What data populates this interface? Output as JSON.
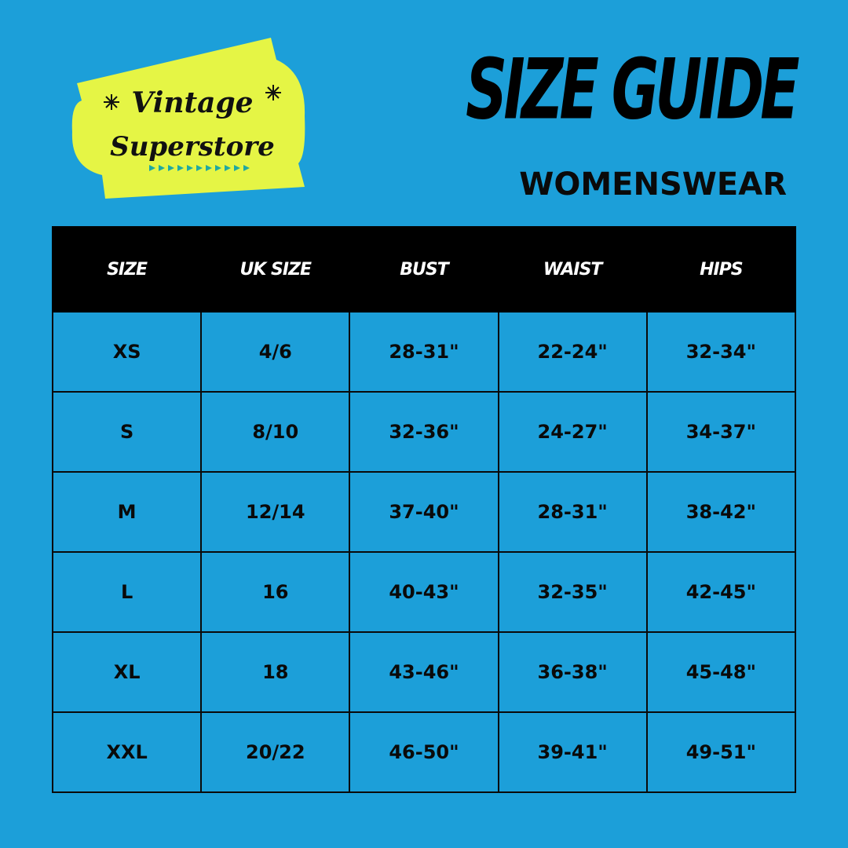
{
  "logo": {
    "line1": "Vintage",
    "line2": "Superstore",
    "badge_color": "#e5f545",
    "accent_color": "#1fa9a0"
  },
  "header": {
    "title": "SIZE GUIDE",
    "subtitle": "WOMENSWEAR"
  },
  "colors": {
    "background": "#1c9fd9",
    "header_row": "#000000"
  },
  "table": {
    "columns": [
      "SIZE",
      "UK SIZE",
      "BUST",
      "WAIST",
      "HIPS"
    ],
    "rows": [
      [
        "XS",
        "4/6",
        "28-31\"",
        "22-24\"",
        "32-34\""
      ],
      [
        "S",
        "8/10",
        "32-36\"",
        "24-27\"",
        "34-37\""
      ],
      [
        "M",
        "12/14",
        "37-40\"",
        "28-31\"",
        "38-42\""
      ],
      [
        "L",
        "16",
        "40-43\"",
        "32-35\"",
        "42-45\""
      ],
      [
        "XL",
        "18",
        "43-46\"",
        "36-38\"",
        "45-48\""
      ],
      [
        "XXL",
        "20/22",
        "46-50\"",
        "39-41\"",
        "49-51\""
      ]
    ]
  }
}
